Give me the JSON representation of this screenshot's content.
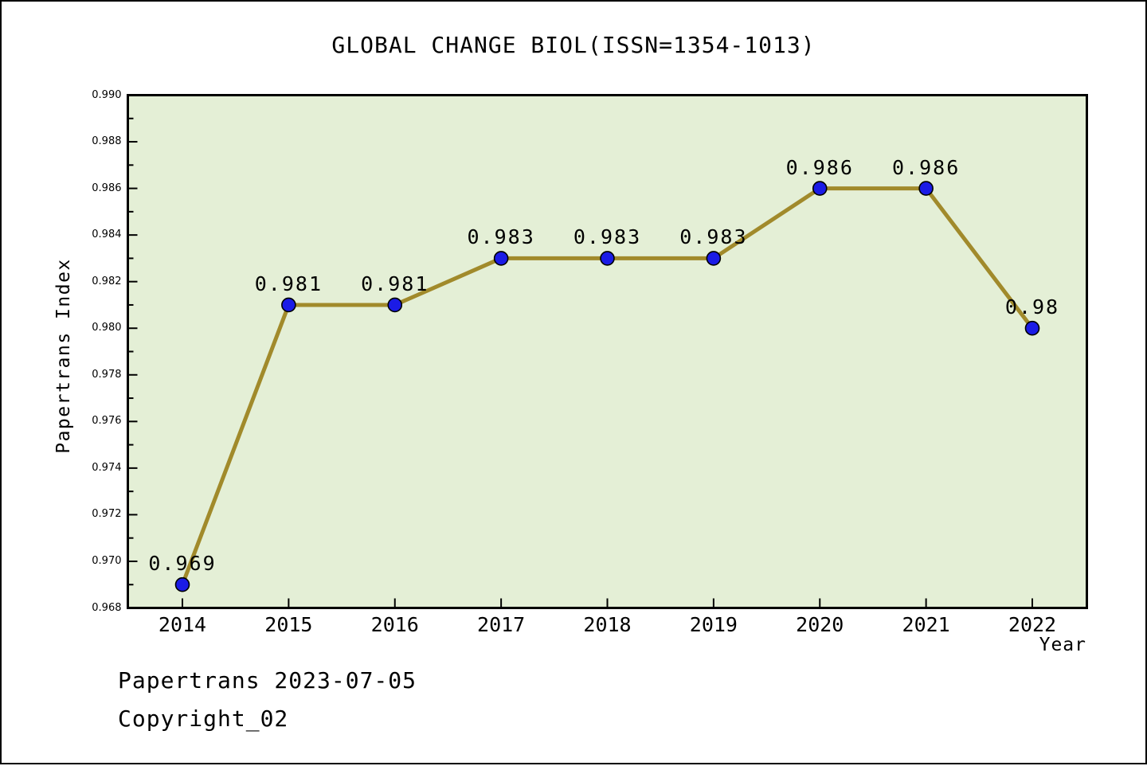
{
  "header": {
    "title": "GLOBAL CHANGE BIOL(ISSN=1354-1013)"
  },
  "footer": {
    "line1": "Papertrans 2023-07-05",
    "line2": "Copyright_02"
  },
  "chart_data": {
    "type": "line",
    "title": "GLOBAL CHANGE BIOL(ISSN=1354-1013)",
    "xlabel": "Year",
    "ylabel": "Papertrans Index",
    "categories": [
      "2014",
      "2015",
      "2016",
      "2017",
      "2018",
      "2019",
      "2020",
      "2021",
      "2022"
    ],
    "values": [
      0.969,
      0.981,
      0.981,
      0.983,
      0.983,
      0.983,
      0.986,
      0.986,
      0.98
    ],
    "point_labels": [
      "0.969",
      "0.981",
      "0.981",
      "0.983",
      "0.983",
      "0.983",
      "0.986",
      "0.986",
      "0.98"
    ],
    "series_name": "Papertrans Index",
    "ylim": [
      0.968,
      0.99
    ],
    "y_tick_labels": [
      "0.968",
      "0.970",
      "0.972",
      "0.974",
      "0.976",
      "0.978",
      "0.980",
      "0.982",
      "0.984",
      "0.986",
      "0.988",
      "0.990"
    ],
    "y_major_tick_step": 0.002,
    "y_minor_tick_step": 0.001,
    "grid": false,
    "legend": null,
    "colors": {
      "line": "#a18a2b",
      "marker_fill": "#1b1be6",
      "marker_edge": "#000000",
      "plot_background": "#e4efd6",
      "figure_background": "#ffffff",
      "frame": "#000000",
      "text": "#000000"
    }
  }
}
